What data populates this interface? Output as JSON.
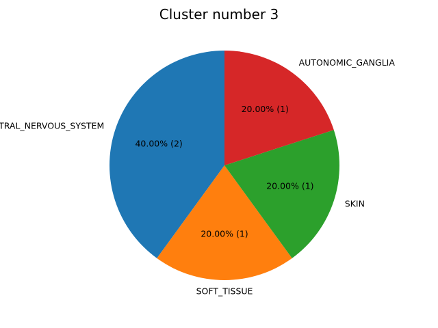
{
  "chart_data": {
    "type": "pie",
    "title": "Cluster number 3",
    "start_angle_deg": 90,
    "direction": "counterclockwise",
    "slices": [
      {
        "label": "CENTRAL_NERVOUS_SYSTEM",
        "value": 2,
        "percent_label": "40.00%  (2)",
        "color": "#1f77b4"
      },
      {
        "label": "SOFT_TISSUE",
        "value": 1,
        "percent_label": "20.00%  (1)",
        "color": "#ff7f0e"
      },
      {
        "label": "SKIN",
        "value": 1,
        "percent_label": "20.00%  (1)",
        "color": "#2ca02c"
      },
      {
        "label": "AUTONOMIC_GANGLIA",
        "value": 1,
        "percent_label": "20.00%  (1)",
        "color": "#d62728"
      }
    ]
  }
}
